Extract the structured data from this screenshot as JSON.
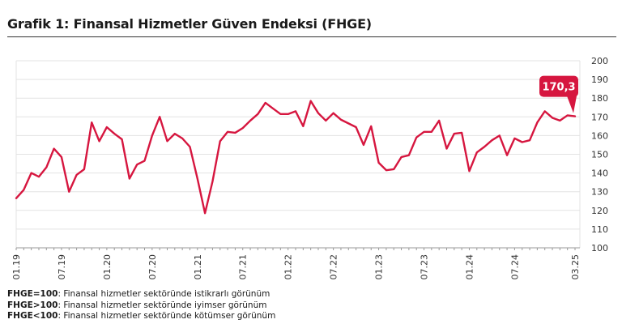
{
  "title": "Grafik 1: Finansal Hizmetler Güven Endeksi (FHGE)",
  "notes": [
    {
      "key": "FHGE=100",
      "text": ": Finansal hizmetler sektöründe istikrarlı görünüm"
    },
    {
      "key": "FHGE>100",
      "text": ": Finansal hizmetler sektöründe iyimser görünüm"
    },
    {
      "key": "FHGE<100",
      "text": ": Finansal hizmetler sektöründe kötümser görünüm"
    }
  ],
  "colors": {
    "line": "#d6163f",
    "grid": "#e3e3e3",
    "axis": "#999999"
  },
  "chart_data": {
    "type": "line",
    "title": "",
    "xlabel": "",
    "ylabel": "",
    "ylim": [
      100,
      200
    ],
    "yticks": [
      100,
      110,
      120,
      130,
      140,
      150,
      160,
      170,
      180,
      190,
      200
    ],
    "grid": true,
    "xtick_labels": [
      "01.19",
      "07.19",
      "01.20",
      "07.20",
      "01.21",
      "07.21",
      "01.22",
      "07.22",
      "01.23",
      "07.23",
      "01.24",
      "07.24",
      "03.25"
    ],
    "xtick_indices": [
      0,
      6,
      12,
      18,
      24,
      30,
      36,
      42,
      48,
      54,
      60,
      66,
      74
    ],
    "series": [
      {
        "values": [
          126.5,
          131,
          140,
          138,
          143,
          153,
          148.5,
          130,
          139,
          142,
          167,
          157,
          164.5,
          161,
          158,
          137,
          144.5,
          146.5,
          160,
          170,
          157,
          161,
          158.5,
          154,
          137,
          118.5,
          135.5,
          157,
          162,
          161.5,
          164,
          168,
          171.5,
          177.5,
          174.5,
          171.5,
          171.5,
          173,
          165,
          178.5,
          172,
          168,
          172,
          168.5,
          166.5,
          164.5,
          155,
          165,
          145.5,
          141.5,
          142,
          148.5,
          149.5,
          159,
          162,
          162,
          168,
          153,
          161,
          161.5,
          141,
          151,
          154,
          157.5,
          160,
          149.5,
          158.5,
          156.5,
          157.5,
          167,
          173,
          169.5,
          168,
          170.8,
          170.3
        ]
      }
    ],
    "annotation": {
      "label": "170,3",
      "index": 74,
      "value": 170.3
    }
  }
}
